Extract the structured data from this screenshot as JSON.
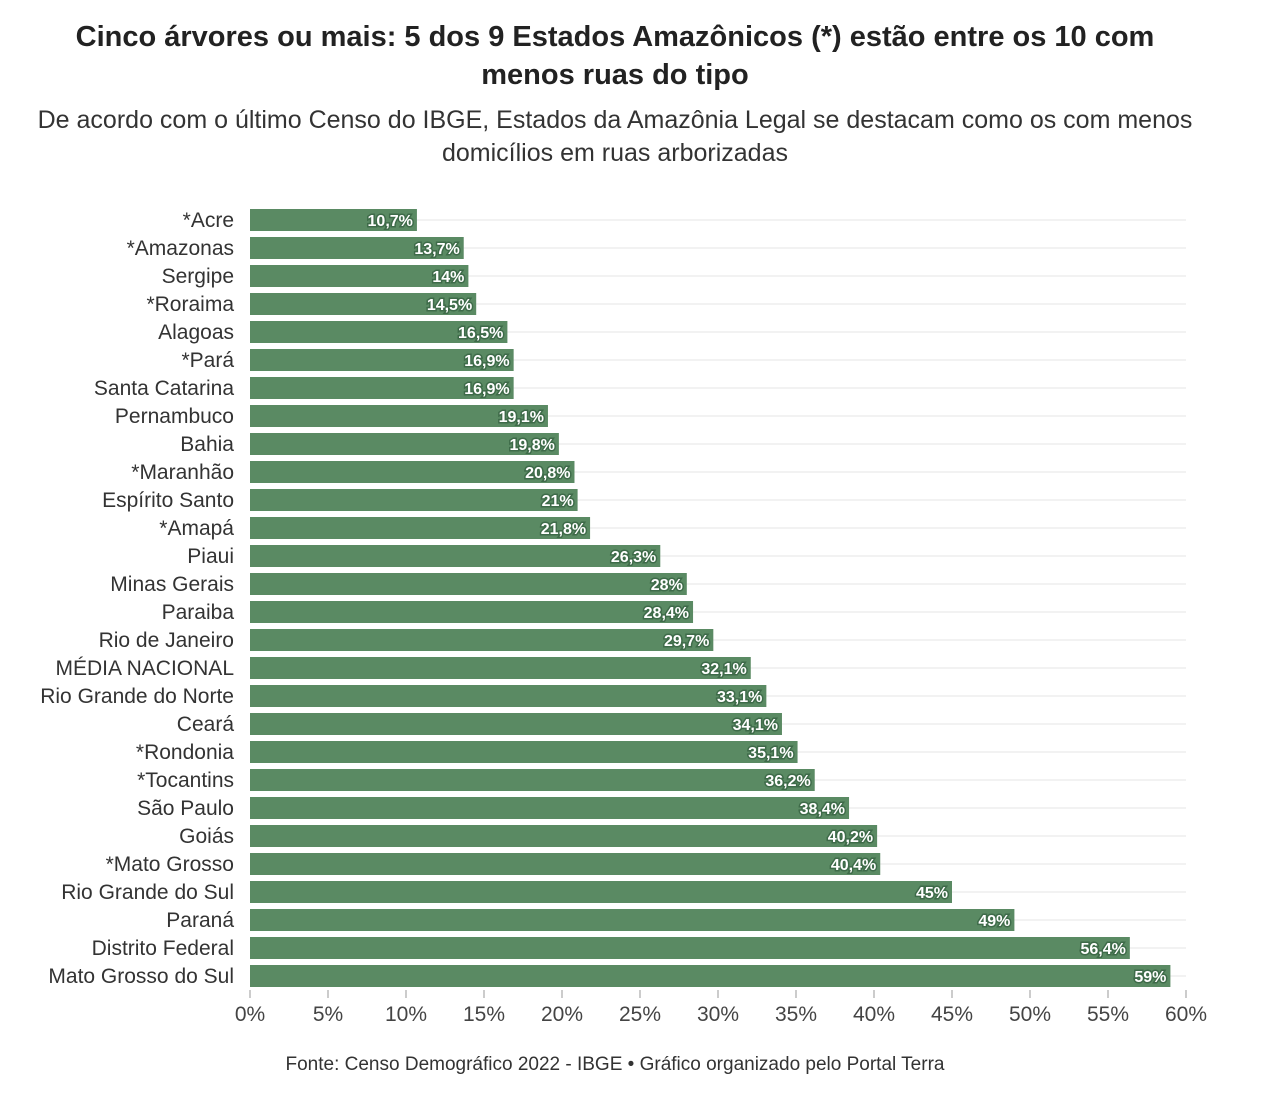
{
  "header": {
    "title": "Cinco árvores ou mais: 5 dos 9 Estados Amazônicos (*) estão entre os 10 com menos ruas do tipo",
    "subtitle": "De acordo com o último Censo do IBGE, Estados da Amazônia Legal se destacam como os com menos domicílios em ruas arborizadas"
  },
  "footer": {
    "source": "Fonte: Censo Demográfico 2022 - IBGE • Gráfico organizado pelo Portal Terra"
  },
  "chart_data": {
    "type": "bar",
    "orientation": "horizontal",
    "bar_color": "#5a8a63",
    "categories": [
      "*Acre",
      "*Amazonas",
      "Sergipe",
      "*Roraima",
      "Alagoas",
      "*Pará",
      "Santa Catarina",
      "Pernambuco",
      "Bahia",
      "*Maranhão",
      "Espírito Santo",
      "*Amapá",
      "Piaui",
      "Minas Gerais",
      "Paraiba",
      "Rio de Janeiro",
      "MÉDIA NACIONAL",
      "Rio Grande do Norte",
      "Ceará",
      "*Rondonia",
      "*Tocantins",
      "São Paulo",
      "Goiás",
      "*Mato Grosso",
      "Rio Grande do Sul",
      "Paraná",
      "Distrito Federal",
      "Mato Grosso do Sul"
    ],
    "values": [
      10.7,
      13.7,
      14,
      14.5,
      16.5,
      16.9,
      16.9,
      19.1,
      19.8,
      20.8,
      21,
      21.8,
      26.3,
      28,
      28.4,
      29.7,
      32.1,
      33.1,
      34.1,
      35.1,
      36.2,
      38.4,
      40.2,
      40.4,
      45,
      49,
      56.4,
      59
    ],
    "value_labels": [
      "10,7%",
      "13,7%",
      "14%",
      "14,5%",
      "16,5%",
      "16,9%",
      "16,9%",
      "19,1%",
      "19,8%",
      "20,8%",
      "21%",
      "21,8%",
      "26,3%",
      "28%",
      "28,4%",
      "29,7%",
      "32,1%",
      "33,1%",
      "34,1%",
      "35,1%",
      "36,2%",
      "38,4%",
      "40,2%",
      "40,4%",
      "45%",
      "49%",
      "56,4%",
      "59%"
    ],
    "xlim": [
      0,
      60
    ],
    "xticks": [
      0,
      5,
      10,
      15,
      20,
      25,
      30,
      35,
      40,
      45,
      50,
      55,
      60
    ],
    "xtick_labels": [
      "0%",
      "5%",
      "10%",
      "15%",
      "20%",
      "25%",
      "30%",
      "35%",
      "40%",
      "45%",
      "50%",
      "55%",
      "60%"
    ],
    "grid": true
  }
}
